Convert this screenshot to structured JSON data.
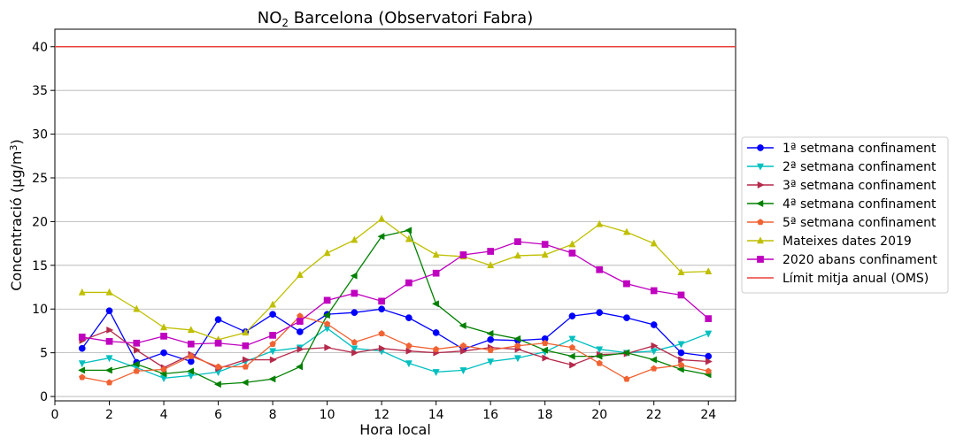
{
  "chart_data": {
    "type": "line",
    "title": "NO2 Barcelona (Observatori Fabra)",
    "xlabel": "Hora local",
    "ylabel": "Concentració (µg/m3)",
    "xlim": [
      0,
      25
    ],
    "ylim": [
      -0.5,
      42
    ],
    "xticks": [
      0,
      2,
      4,
      6,
      8,
      10,
      12,
      14,
      16,
      18,
      20,
      22,
      24
    ],
    "yticks": [
      0,
      5,
      10,
      15,
      20,
      25,
      30,
      35,
      40
    ],
    "grid": "horizontal",
    "legend_position": "center-right outside",
    "x": [
      1,
      2,
      3,
      4,
      5,
      6,
      7,
      8,
      9,
      10,
      11,
      12,
      13,
      14,
      15,
      16,
      17,
      18,
      19,
      20,
      21,
      22,
      23,
      24
    ],
    "series": [
      {
        "name": "1ª setmana confinament",
        "color": "#0000ff",
        "marker": "circle",
        "values": [
          5.5,
          9.8,
          3.9,
          5.0,
          4.0,
          8.8,
          7.4,
          9.4,
          7.4,
          9.4,
          9.6,
          10.0,
          9.0,
          7.3,
          5.4,
          6.5,
          6.4,
          6.6,
          9.2,
          9.6,
          9.0,
          8.2,
          5.0,
          4.6
        ]
      },
      {
        "name": "2ª setmana confinament",
        "color": "#00bfbf",
        "marker": "triangle-down",
        "values": [
          3.8,
          4.4,
          3.3,
          2.1,
          2.4,
          2.8,
          4.0,
          5.2,
          5.6,
          7.8,
          5.5,
          5.2,
          3.8,
          2.8,
          3.0,
          4.0,
          4.4,
          5.1,
          6.6,
          5.4,
          5.0,
          5.2,
          6.0,
          7.2
        ]
      },
      {
        "name": "3ª setmana confinament",
        "color": "#b5294a",
        "marker": "triangle-right",
        "values": [
          6.4,
          7.6,
          5.3,
          3.3,
          4.8,
          3.2,
          4.2,
          4.2,
          5.4,
          5.6,
          5.0,
          5.5,
          5.2,
          5.0,
          5.2,
          5.6,
          5.4,
          4.4,
          3.6,
          4.8,
          4.9,
          5.8,
          4.2,
          4.0
        ]
      },
      {
        "name": "4ª setmana confinament",
        "color": "#008000",
        "marker": "triangle-left",
        "values": [
          3.0,
          3.0,
          3.7,
          2.6,
          2.9,
          1.4,
          1.6,
          2.0,
          3.4,
          9.3,
          13.8,
          18.3,
          19.0,
          10.6,
          8.1,
          7.2,
          6.6,
          5.3,
          4.6,
          4.6,
          5.0,
          4.2,
          3.1,
          2.5
        ]
      },
      {
        "name": "5ª setmana confinament",
        "color": "#f06232",
        "marker": "pentagon",
        "values": [
          2.2,
          1.6,
          2.9,
          3.1,
          4.6,
          3.4,
          3.4,
          6.0,
          9.2,
          8.3,
          6.2,
          7.2,
          5.8,
          5.4,
          5.8,
          5.3,
          5.8,
          6.1,
          5.6,
          3.8,
          2.0,
          3.2,
          3.6,
          2.9
        ]
      },
      {
        "name": "Mateixes dates 2019",
        "color": "#bfbf00",
        "marker": "triangle-up",
        "values": [
          11.9,
          11.9,
          10.0,
          7.9,
          7.6,
          6.5,
          7.3,
          10.5,
          13.9,
          16.4,
          17.9,
          20.3,
          18.0,
          16.2,
          16.0,
          15.0,
          16.1,
          16.2,
          17.4,
          19.7,
          18.8,
          17.5,
          14.2,
          14.3
        ]
      },
      {
        "name": "2020 abans confinament",
        "color": "#bf00bf",
        "marker": "square",
        "values": [
          6.8,
          6.3,
          6.1,
          6.9,
          6.0,
          6.1,
          5.8,
          7.0,
          8.6,
          11.0,
          11.8,
          10.9,
          13.0,
          14.1,
          16.2,
          16.6,
          17.7,
          17.4,
          16.4,
          14.5,
          12.9,
          12.1,
          11.6,
          8.9
        ]
      },
      {
        "name": "Límit mitja anual (OMS)",
        "color": "#e8413b",
        "marker": "none",
        "type": "hline",
        "value": 40
      }
    ]
  }
}
